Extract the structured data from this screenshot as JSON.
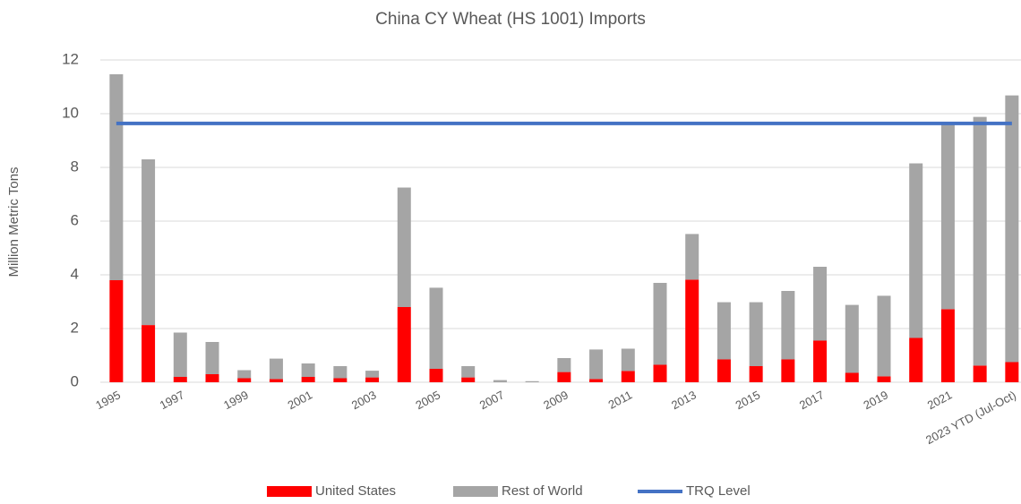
{
  "chart_data": {
    "type": "bar",
    "stacked": true,
    "title": "China CY Wheat (HS 1001) Imports",
    "y_label": "Million Metric Tons",
    "categories": [
      "1995",
      null,
      "1997",
      null,
      "1999",
      null,
      "2001",
      null,
      "2003",
      null,
      "2005",
      null,
      "2007",
      null,
      "2009",
      null,
      "2011",
      null,
      "2013",
      null,
      "2015",
      null,
      "2017",
      null,
      "2019",
      null,
      "2021",
      null,
      "2023 YTD (Jul-Oct)"
    ],
    "series": [
      {
        "name": "United States",
        "color": "#ff0000",
        "type": "bar",
        "values": [
          3.8,
          2.13,
          0.2,
          0.3,
          0.15,
          0.12,
          0.2,
          0.15,
          0.18,
          2.8,
          0.5,
          0.18,
          0,
          0,
          0.38,
          0.12,
          0.42,
          0.65,
          3.82,
          0.85,
          0.6,
          0.85,
          1.55,
          0.35,
          0.22,
          1.65,
          2.72,
          0.62,
          0.75
        ]
      },
      {
        "name": "Rest of World",
        "color": "#a5a5a5",
        "type": "bar",
        "values": [
          7.67,
          6.17,
          1.65,
          1.2,
          0.3,
          0.76,
          0.5,
          0.45,
          0.25,
          4.45,
          3.02,
          0.42,
          0.08,
          0.04,
          0.52,
          1.1,
          0.83,
          3.05,
          1.7,
          2.13,
          2.38,
          2.55,
          2.75,
          2.53,
          3.0,
          6.5,
          6.98,
          9.26,
          9.93
        ]
      },
      {
        "name": "TRQ Level",
        "color": "#4472c4",
        "type": "line",
        "values": [
          9.636,
          9.636,
          9.636,
          9.636,
          9.636,
          9.636,
          9.636,
          9.636,
          9.636,
          9.636,
          9.636,
          9.636,
          9.636,
          9.636,
          9.636,
          9.636,
          9.636,
          9.636,
          9.636,
          9.636,
          9.636,
          9.636,
          9.636,
          9.636,
          9.636,
          9.636,
          9.636,
          9.636,
          9.636
        ]
      }
    ],
    "ylim": [
      0,
      12
    ],
    "yticks": [
      0,
      2,
      4,
      6,
      8,
      10,
      12
    ],
    "grid": true,
    "legend": "bottom"
  }
}
